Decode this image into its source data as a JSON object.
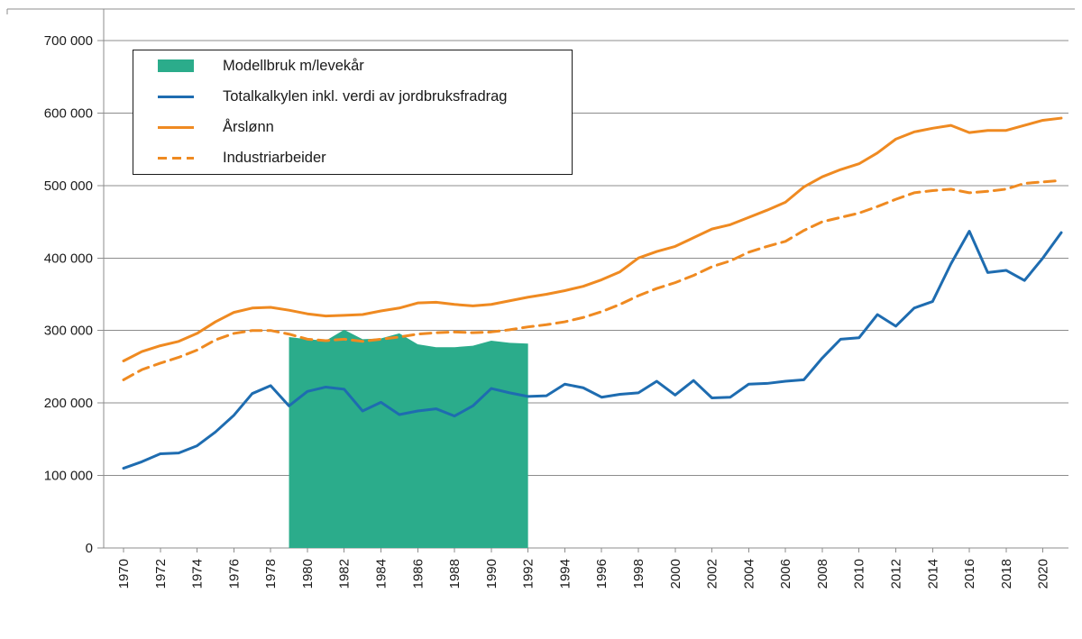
{
  "figure": {
    "background": "#ffffff",
    "grid_color": "#8c8c8c",
    "text_color": "#1a1a1a"
  },
  "legend": {
    "items": [
      {
        "label": "Modellbruk m/levekår",
        "swatch": "area",
        "color": "#2bac8b"
      },
      {
        "label": "Totalkalkylen inkl. verdi av jordbruksfradrag",
        "swatch": "line",
        "color": "#1e6cb0"
      },
      {
        "label": "Årslønn",
        "swatch": "line",
        "color": "#ef8a21"
      },
      {
        "label": "Industriarbeider",
        "swatch": "dashed-line",
        "color": "#ef8a21"
      }
    ]
  },
  "chart_data": {
    "type": "line",
    "title": "",
    "grid": true,
    "legend_position": "top-left",
    "x": [
      1970,
      1971,
      1972,
      1973,
      1974,
      1975,
      1976,
      1977,
      1978,
      1979,
      1980,
      1981,
      1982,
      1983,
      1984,
      1985,
      1986,
      1987,
      1988,
      1989,
      1990,
      1991,
      1992,
      1993,
      1994,
      1995,
      1996,
      1997,
      1998,
      1999,
      2000,
      2001,
      2002,
      2003,
      2004,
      2005,
      2006,
      2007,
      2008,
      2009,
      2010,
      2011,
      2012,
      2013,
      2014,
      2015,
      2016,
      2017,
      2018,
      2019,
      2020,
      2021
    ],
    "x_tick_labels": [
      "1970",
      "1972",
      "1974",
      "1976",
      "1978",
      "1980",
      "1982",
      "1984",
      "1986",
      "1988",
      "1990",
      "1992",
      "1994",
      "1996",
      "1998",
      "2000",
      "2002",
      "2004",
      "2006",
      "2008",
      "2010",
      "2012",
      "2014",
      "2016",
      "2018",
      "2020"
    ],
    "y_axis": {
      "min": 0,
      "max": 700000,
      "tick_interval": 100000,
      "tick_labels": [
        "0",
        "100 000",
        "200 000",
        "300 000",
        "400 000",
        "500 000",
        "600 000",
        "700 000"
      ]
    },
    "series": [
      {
        "name": "Modellbruk m/levekår",
        "type": "area",
        "color": "#2bac8b",
        "values": [
          null,
          null,
          null,
          null,
          null,
          null,
          null,
          null,
          null,
          291000,
          288000,
          286000,
          301000,
          288000,
          289000,
          296000,
          281000,
          277000,
          277000,
          279000,
          286000,
          283000,
          282000,
          null,
          null,
          null,
          null,
          null,
          null,
          null,
          null,
          null,
          null,
          null,
          null,
          null,
          null,
          null,
          null,
          null,
          null,
          null,
          null,
          null,
          null,
          null,
          null,
          null,
          null,
          null,
          null,
          null
        ]
      },
      {
        "name": "Totalkalkylen inkl. verdi av jordbruksfradrag",
        "type": "line",
        "dash": false,
        "color": "#1e6cb0",
        "values": [
          110000,
          119000,
          130000,
          131000,
          141000,
          160000,
          183000,
          213000,
          224000,
          196000,
          216000,
          222000,
          219000,
          189000,
          201000,
          184000,
          189000,
          192000,
          182000,
          196000,
          220000,
          214000,
          209000,
          210000,
          226000,
          221000,
          208000,
          212000,
          214000,
          230000,
          211000,
          231000,
          207000,
          208000,
          226000,
          227000,
          230000,
          232000,
          262000,
          288000,
          290000,
          322000,
          306000,
          331000,
          340000,
          392000,
          437000,
          380000,
          383000,
          369000,
          400000,
          435000
        ]
      },
      {
        "name": "Årslønn",
        "type": "line",
        "dash": false,
        "color": "#ef8a21",
        "values": [
          258000,
          271000,
          279000,
          285000,
          296000,
          312000,
          325000,
          331000,
          332000,
          328000,
          323000,
          320000,
          321000,
          322000,
          327000,
          331000,
          338000,
          339000,
          336000,
          334000,
          336000,
          341000,
          346000,
          350000,
          355000,
          361000,
          370000,
          381000,
          400000,
          409000,
          416000,
          428000,
          440000,
          446000,
          456000,
          466000,
          477000,
          498000,
          512000,
          522000,
          530000,
          545000,
          564000,
          574000,
          579000,
          583000,
          573000,
          576000,
          576000,
          583000,
          590000,
          593000
        ]
      },
      {
        "name": "Industriarbeider",
        "type": "line",
        "dash": true,
        "color": "#ef8a21",
        "values": [
          232000,
          246000,
          255000,
          263000,
          273000,
          287000,
          296000,
          300000,
          300000,
          295000,
          288000,
          286000,
          288000,
          285000,
          288000,
          291000,
          295000,
          297000,
          298000,
          297000,
          298000,
          301000,
          305000,
          308000,
          312000,
          318000,
          326000,
          336000,
          348000,
          358000,
          366000,
          376000,
          388000,
          396000,
          408000,
          416000,
          423000,
          438000,
          450000,
          456000,
          462000,
          471000,
          481000,
          490000,
          493000,
          495000,
          490000,
          492000,
          495000,
          503000,
          505000,
          507000
        ]
      }
    ]
  }
}
